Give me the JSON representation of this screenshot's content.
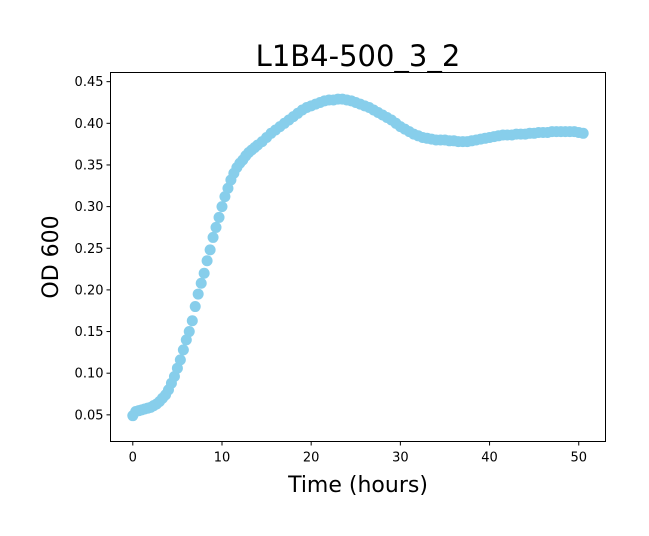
{
  "chart_data": {
    "type": "scatter",
    "title": "L1B4-500_3_2",
    "xlabel": "Time (hours)",
    "ylabel": "OD 600",
    "xlim": [
      -2.5,
      53.0
    ],
    "ylim": [
      0.018,
      0.461
    ],
    "xticks": [
      0,
      10,
      20,
      30,
      40,
      50
    ],
    "yticks": [
      0.05,
      0.1,
      0.15,
      0.2,
      0.25,
      0.3,
      0.35,
      0.4,
      0.45
    ],
    "ytick_labels": [
      "0.05",
      "0.10",
      "0.15",
      "0.20",
      "0.25",
      "0.30",
      "0.35",
      "0.40",
      "0.45"
    ],
    "grid": false,
    "legend": "none",
    "marker_color": "#87CEEB",
    "series": [
      {
        "x": [
          0.0,
          0.33,
          0.67,
          1.0,
          1.33,
          1.67,
          2.0,
          2.33,
          2.67,
          3.0,
          3.33,
          3.67,
          4.0,
          4.33,
          4.67,
          5.0,
          5.33,
          5.67,
          6.0,
          6.33,
          6.67,
          7.0,
          7.33,
          7.67,
          8.0,
          8.33,
          8.67,
          9.0,
          9.33,
          9.67,
          10.0,
          10.33,
          10.67,
          11.0,
          11.33,
          11.67,
          12.0,
          12.33,
          12.67,
          13.0,
          13.33,
          13.67,
          14.0,
          14.5,
          15.0,
          15.5,
          16.0,
          16.5,
          17.0,
          17.5,
          18.0,
          18.5,
          19.0,
          19.5,
          20.0,
          20.5,
          21.0,
          21.5,
          22.0,
          22.5,
          23.0,
          23.5,
          24.0,
          24.5,
          25.0,
          25.5,
          26.0,
          26.5,
          27.0,
          27.5,
          28.0,
          28.5,
          29.0,
          29.5,
          30.0,
          30.5,
          31.0,
          31.5,
          32.0,
          32.5,
          33.0,
          33.5,
          34.0,
          34.5,
          35.0,
          35.5,
          36.0,
          36.5,
          37.0,
          37.5,
          38.0,
          38.5,
          39.0,
          39.5,
          40.0,
          40.5,
          41.0,
          41.5,
          42.0,
          42.5,
          43.0,
          43.5,
          44.0,
          44.5,
          45.0,
          45.5,
          46.0,
          46.5,
          47.0,
          47.5,
          48.0,
          48.5,
          49.0,
          49.5,
          50.0,
          50.5
        ],
        "y": [
          0.049,
          0.054,
          0.055,
          0.056,
          0.057,
          0.058,
          0.059,
          0.061,
          0.063,
          0.066,
          0.07,
          0.074,
          0.08,
          0.088,
          0.096,
          0.106,
          0.116,
          0.128,
          0.14,
          0.15,
          0.163,
          0.18,
          0.195,
          0.208,
          0.22,
          0.235,
          0.248,
          0.263,
          0.275,
          0.287,
          0.3,
          0.312,
          0.322,
          0.332,
          0.34,
          0.347,
          0.352,
          0.356,
          0.361,
          0.365,
          0.368,
          0.371,
          0.374,
          0.378,
          0.383,
          0.388,
          0.392,
          0.396,
          0.4,
          0.404,
          0.408,
          0.412,
          0.416,
          0.419,
          0.421,
          0.423,
          0.425,
          0.427,
          0.428,
          0.428,
          0.429,
          0.429,
          0.428,
          0.427,
          0.425,
          0.423,
          0.421,
          0.419,
          0.416,
          0.413,
          0.41,
          0.407,
          0.404,
          0.4,
          0.396,
          0.393,
          0.39,
          0.387,
          0.385,
          0.383,
          0.382,
          0.381,
          0.38,
          0.38,
          0.38,
          0.379,
          0.379,
          0.378,
          0.378,
          0.378,
          0.379,
          0.38,
          0.381,
          0.382,
          0.383,
          0.384,
          0.385,
          0.386,
          0.386,
          0.386,
          0.387,
          0.387,
          0.387,
          0.388,
          0.388,
          0.389,
          0.389,
          0.389,
          0.39,
          0.39,
          0.39,
          0.39,
          0.39,
          0.39,
          0.389,
          0.388
        ]
      }
    ]
  }
}
